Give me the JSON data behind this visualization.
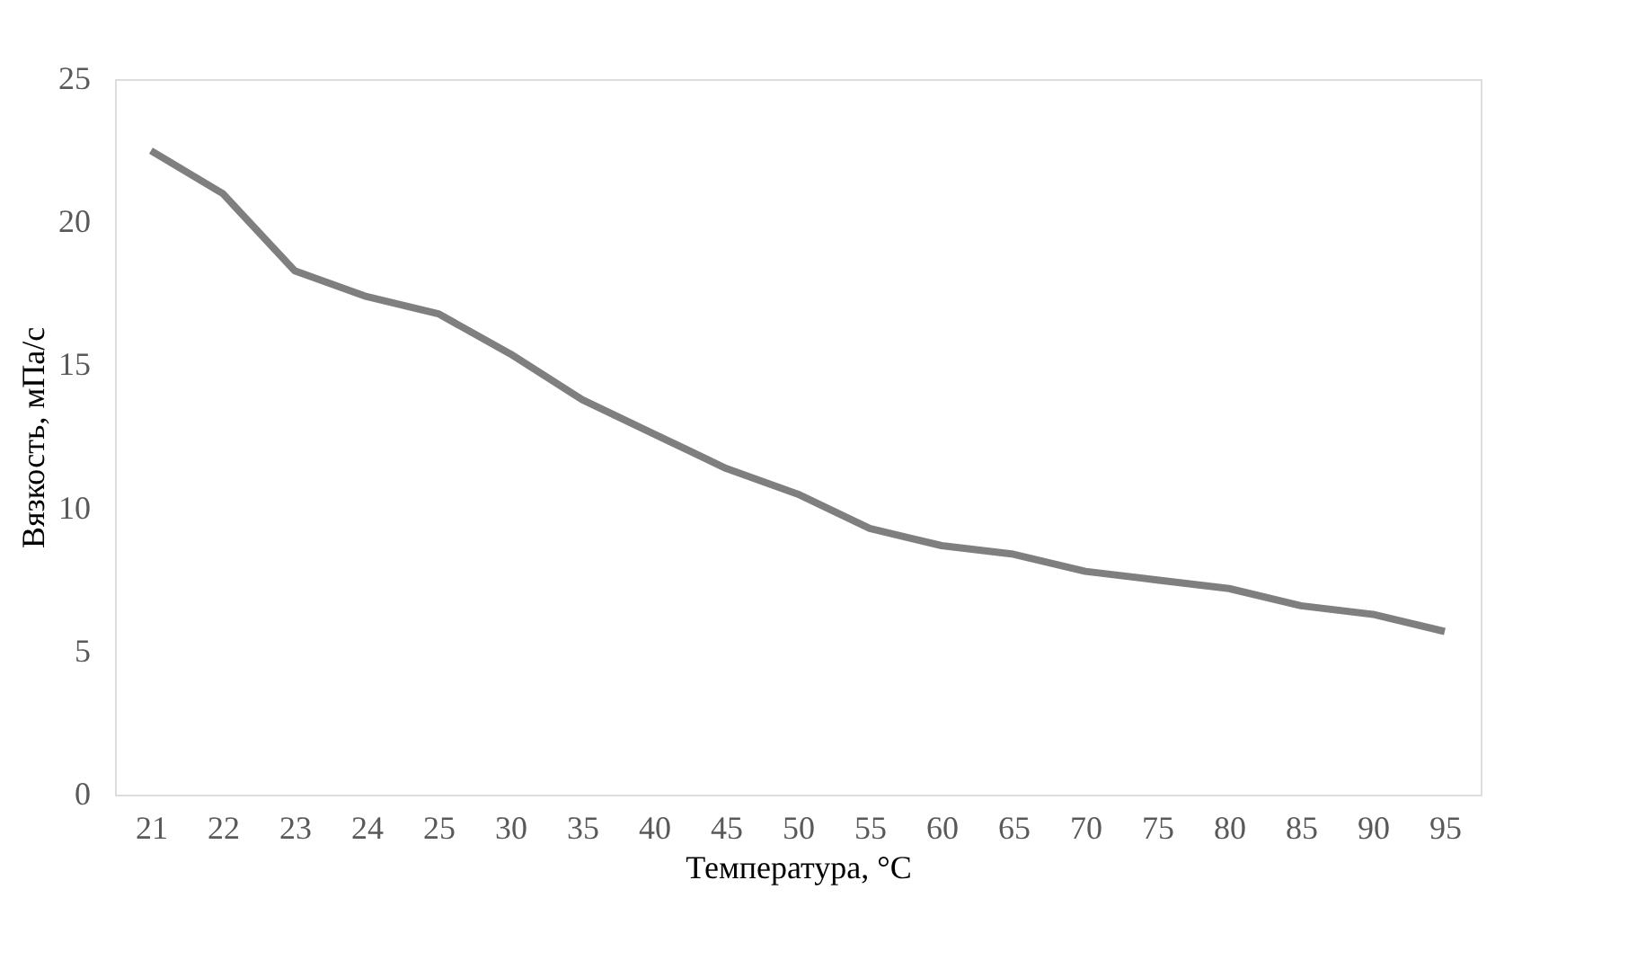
{
  "chart_data": {
    "type": "line",
    "xlabel": "Температура, °C",
    "ylabel": "Вязкость, мПа/с",
    "categories": [
      "21",
      "22",
      "23",
      "24",
      "25",
      "30",
      "35",
      "40",
      "45",
      "50",
      "55",
      "60",
      "65",
      "70",
      "75",
      "80",
      "85",
      "90",
      "95"
    ],
    "series": [
      {
        "color": "#7f7f7f",
        "values": [
          22.5,
          21.0,
          18.3,
          17.4,
          16.8,
          15.4,
          13.8,
          12.6,
          11.4,
          10.5,
          9.3,
          8.7,
          8.4,
          7.8,
          7.5,
          7.2,
          6.6,
          6.3,
          5.7
        ]
      }
    ],
    "ylim": [
      0,
      25
    ],
    "yticks": [
      0,
      5,
      10,
      15,
      20,
      25
    ],
    "grid": false,
    "legend": false,
    "marker": "none",
    "line_style": "solid"
  }
}
